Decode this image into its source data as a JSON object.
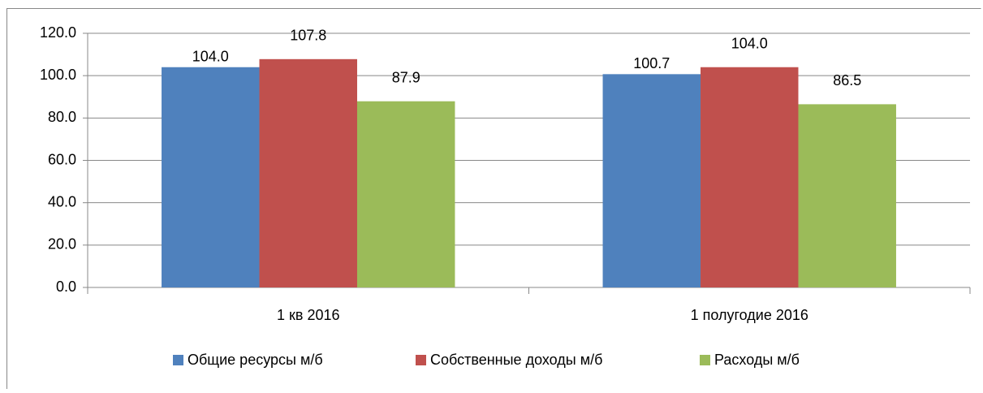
{
  "chart_data": {
    "type": "bar",
    "categories": [
      "1 кв 2016",
      "1 полугодие 2016"
    ],
    "series": [
      {
        "name": "Общие ресурсы м/б",
        "color": "#4f81bd",
        "values": [
          104.0,
          100.7
        ],
        "value_labels": [
          "104.0",
          "100.7"
        ]
      },
      {
        "name": "Собственные доходы м/б",
        "color": "#c0504d",
        "values": [
          107.8,
          104.0
        ],
        "value_labels": [
          "107.8",
          "104.0"
        ]
      },
      {
        "name": "Расходы м/б",
        "color": "#9bbb59",
        "values": [
          87.9,
          86.5
        ],
        "value_labels": [
          "87.9",
          "86.5"
        ]
      }
    ],
    "ylim": [
      0,
      120
    ],
    "yticks": [
      {
        "value": 0,
        "label": "0.0"
      },
      {
        "value": 20,
        "label": "20.0"
      },
      {
        "value": 40,
        "label": "40.0"
      },
      {
        "value": 60,
        "label": "60.0"
      },
      {
        "value": 80,
        "label": "80.0"
      },
      {
        "value": 100,
        "label": "100.0"
      },
      {
        "value": 120,
        "label": "120.0"
      }
    ],
    "grid": true,
    "legend": "bottom"
  }
}
